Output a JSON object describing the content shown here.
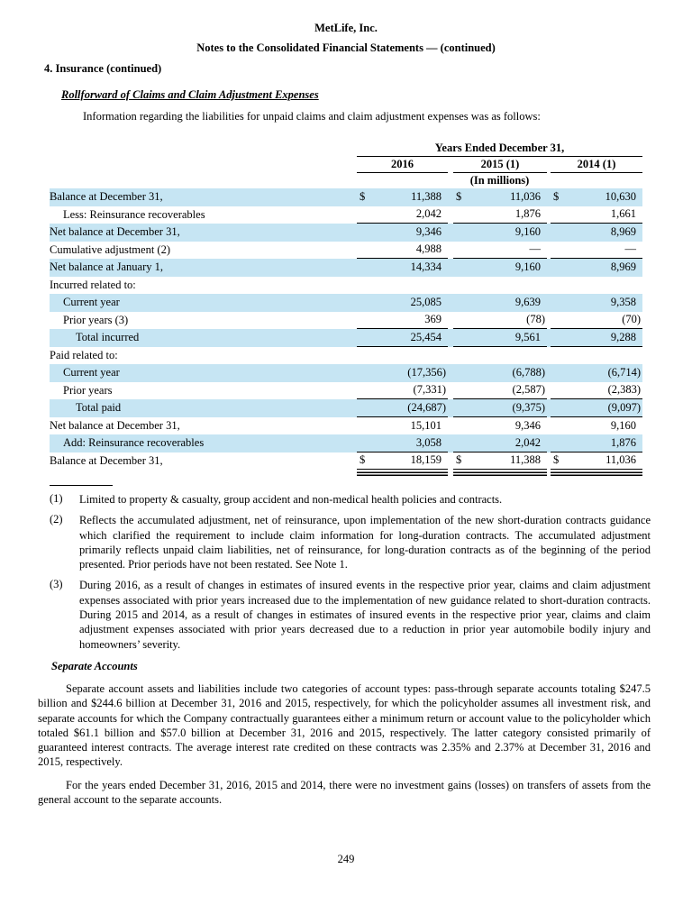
{
  "page": {
    "company": "MetLife, Inc.",
    "doc_title": "Notes to the Consolidated Financial Statements — (continued)",
    "section": "4. Insurance (continued)",
    "subsection": "Rollforward of Claims and Claim Adjustment Expenses",
    "intro": "Information regarding the liabilities for unpaid claims and claim adjustment expenses was as follows:",
    "page_number": "249"
  },
  "table": {
    "span_header": "Years Ended December 31,",
    "col_headers": [
      "2016",
      "2015 (1)",
      "2014 (1)"
    ],
    "units": "(In millions)",
    "currency_symbol": "$",
    "highlight_color": "#c6e5f3",
    "rows": [
      {
        "label": "Balance at December 31,",
        "indent": 0,
        "dollar": true,
        "values": [
          "11,388",
          "11,036",
          "10,630"
        ],
        "highlight": true
      },
      {
        "label": "Less: Reinsurance recoverables",
        "indent": 1,
        "values": [
          "2,042",
          "1,876",
          "1,661"
        ],
        "highlight": false,
        "rule_below": true
      },
      {
        "label": "Net balance at December 31,",
        "indent": 0,
        "values": [
          "9,346",
          "9,160",
          "8,969"
        ],
        "highlight": true
      },
      {
        "label": "Cumulative adjustment (2)",
        "indent": 0,
        "values": [
          "4,988",
          "—",
          "—"
        ],
        "highlight": false,
        "rule_below": true
      },
      {
        "label": "Net balance at January 1,",
        "indent": 0,
        "values": [
          "14,334",
          "9,160",
          "8,969"
        ],
        "highlight": true
      },
      {
        "label": "Incurred related to:",
        "indent": 0,
        "values": [
          "",
          "",
          ""
        ],
        "highlight": false
      },
      {
        "label": "Current year",
        "indent": 1,
        "values": [
          "25,085",
          "9,639",
          "9,358"
        ],
        "highlight": true
      },
      {
        "label": "Prior years (3)",
        "indent": 1,
        "values": [
          "369",
          "(78)",
          "(70)"
        ],
        "highlight": false,
        "rule_below": true
      },
      {
        "label": "Total incurred",
        "indent": 2,
        "values": [
          "25,454",
          "9,561",
          "9,288"
        ],
        "highlight": true,
        "rule_below": true
      },
      {
        "label": "Paid related to:",
        "indent": 0,
        "values": [
          "",
          "",
          ""
        ],
        "highlight": false
      },
      {
        "label": "Current year",
        "indent": 1,
        "values": [
          "(17,356)",
          "(6,788)",
          "(6,714)"
        ],
        "highlight": true
      },
      {
        "label": "Prior years",
        "indent": 1,
        "values": [
          "(7,331)",
          "(2,587)",
          "(2,383)"
        ],
        "highlight": false,
        "rule_below": true
      },
      {
        "label": "Total paid",
        "indent": 2,
        "values": [
          "(24,687)",
          "(9,375)",
          "(9,097)"
        ],
        "highlight": true,
        "rule_below": true
      },
      {
        "label": "Net balance at December 31,",
        "indent": 0,
        "values": [
          "15,101",
          "9,346",
          "9,160"
        ],
        "highlight": false
      },
      {
        "label": "Add: Reinsurance recoverables",
        "indent": 1,
        "values": [
          "3,058",
          "2,042",
          "1,876"
        ],
        "highlight": true,
        "rule_below": true
      },
      {
        "label": "Balance at December 31,",
        "indent": 0,
        "dollar": true,
        "values": [
          "18,159",
          "11,388",
          "11,036"
        ],
        "highlight": false,
        "final": true
      }
    ]
  },
  "footnotes": [
    {
      "marker": "(1)",
      "text": "Limited to property & casualty, group accident and non-medical health policies and contracts."
    },
    {
      "marker": "(2)",
      "text": "Reflects the accumulated adjustment, net of reinsurance, upon implementation of the new short-duration contracts guidance which clarified the requirement to include claim information for long-duration contracts. The accumulated adjustment primarily reflects unpaid claim liabilities, net of reinsurance, for long-duration contracts as of the beginning of the period presented. Prior periods have not been restated. See Note 1."
    },
    {
      "marker": "(3)",
      "text": "During 2016, as a result of changes in estimates of insured events in the respective prior year, claims and claim adjustment expenses associated with prior years increased due to the implementation of new guidance related to short-duration contracts. During 2015 and 2014, as a result of changes in estimates of insured events in the respective prior year, claims and claim adjustment expenses associated with prior years decreased due to a reduction in prior year automobile bodily injury and homeowners’ severity."
    }
  ],
  "separate_accounts": {
    "heading": "Separate Accounts",
    "para1": "Separate account assets and liabilities include two categories of account types: pass-through separate accounts totaling $247.5 billion and $244.6 billion at December 31, 2016 and 2015, respectively, for which the policyholder assumes all investment risk, and separate accounts for which the Company contractually guarantees either a minimum return or account value to the policyholder which totaled $61.1 billion and $57.0 billion at December 31, 2016 and 2015, respectively. The latter category consisted primarily of guaranteed interest contracts. The average interest rate credited on these contracts was 2.35% and 2.37% at December 31, 2016 and 2015, respectively.",
    "para2": "For the years ended December 31, 2016, 2015 and 2014, there were no investment gains (losses) on transfers of assets from the general account to the separate accounts."
  }
}
